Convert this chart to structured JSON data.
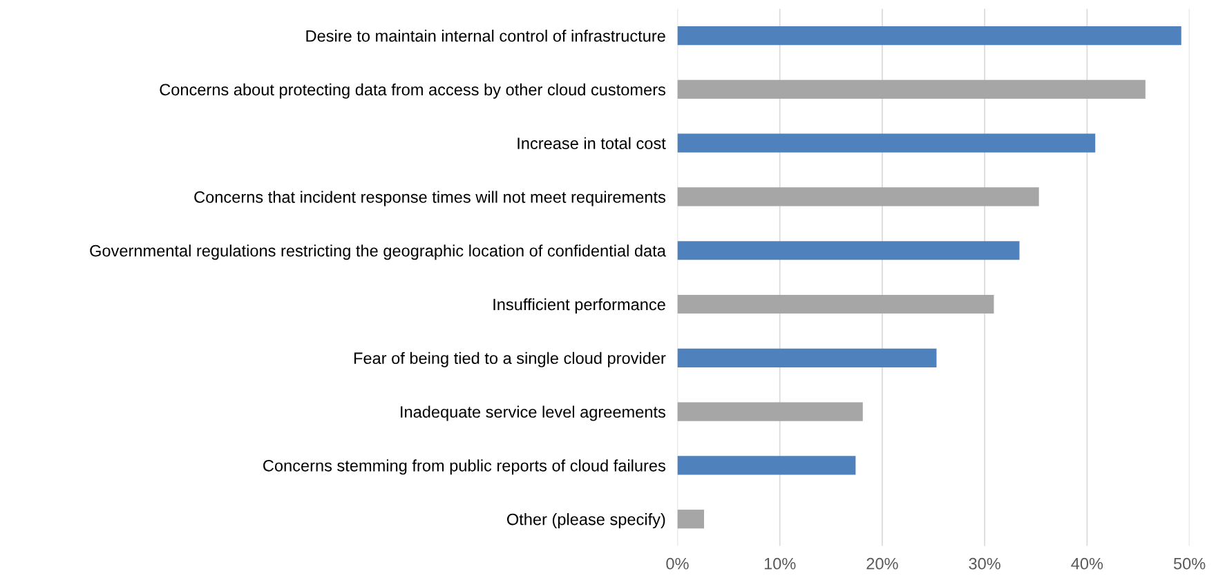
{
  "chart_data": {
    "type": "bar",
    "orientation": "horizontal",
    "categories": [
      "Desire to maintain internal control of infrastructure",
      "Concerns about protecting data from access by other cloud customers",
      "Increase in total cost",
      "Concerns that incident response times will not meet requirements",
      "Governmental regulations restricting the geographic location of confidential data",
      "Insufficient performance",
      "Fear of being tied to a single cloud provider",
      "Inadequate service level agreements",
      "Concerns stemming from public reports of cloud failures",
      "Other (please specify)"
    ],
    "values": [
      49.2,
      45.7,
      40.8,
      35.3,
      33.4,
      30.9,
      25.3,
      18.1,
      17.4,
      2.6
    ],
    "colors": [
      "#4f81bd",
      "#a6a6a6",
      "#4f81bd",
      "#a6a6a6",
      "#4f81bd",
      "#a6a6a6",
      "#4f81bd",
      "#a6a6a6",
      "#4f81bd",
      "#a6a6a6"
    ],
    "xlim": [
      0,
      50
    ],
    "xticks": [
      {
        "value": 0,
        "label": "0%"
      },
      {
        "value": 10,
        "label": "10%"
      },
      {
        "value": 20,
        "label": "20%"
      },
      {
        "value": 30,
        "label": "30%"
      },
      {
        "value": 40,
        "label": "40%"
      },
      {
        "value": 50,
        "label": "50%"
      }
    ],
    "grid": "x",
    "legend": false
  }
}
